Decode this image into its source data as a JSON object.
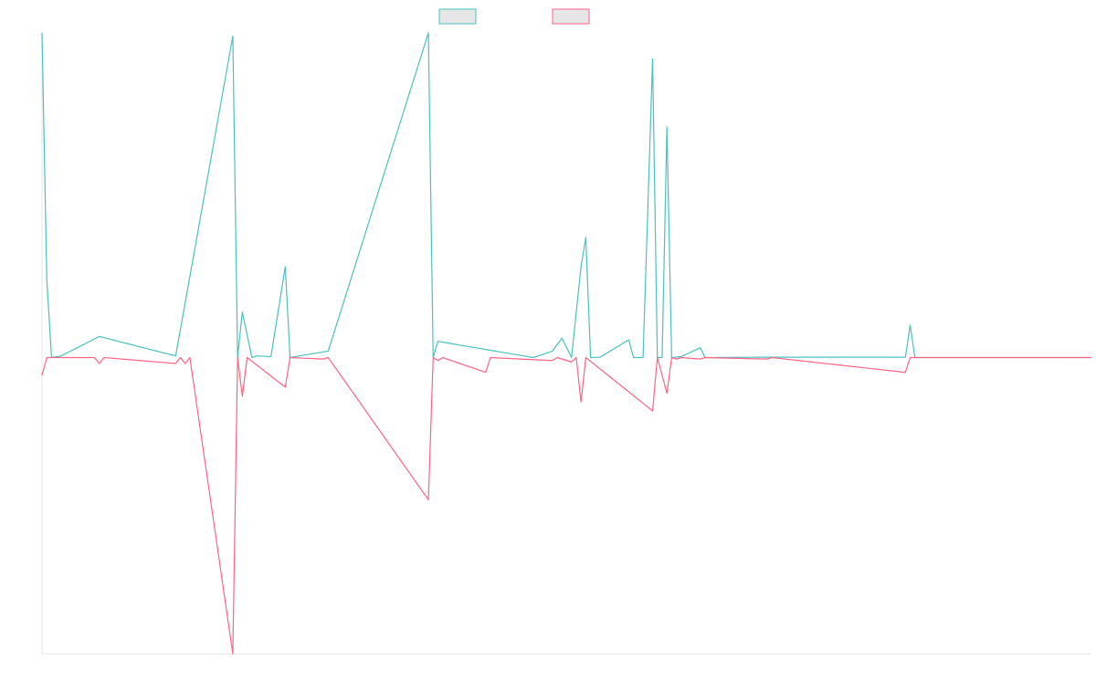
{
  "chart_data": {
    "type": "line",
    "title": "",
    "xlabel": "",
    "ylabel": "",
    "grid": false,
    "legend_position": "top-center",
    "x_count": 221,
    "ylim": [
      -1.0,
      1.0
    ],
    "series": [
      {
        "color": "#4bc0c0",
        "fill": "#e6e6e6",
        "points": [
          [
            0,
            1.0
          ],
          [
            1,
            0.24
          ],
          [
            2,
            0.0
          ],
          [
            4,
            0.005
          ],
          [
            12,
            0.065
          ],
          [
            28,
            0.005
          ],
          [
            29,
            0.085
          ],
          [
            40,
            0.99
          ],
          [
            41,
            0.0
          ],
          [
            42,
            0.14
          ],
          [
            44,
            0.0
          ],
          [
            45,
            0.005
          ],
          [
            48,
            0.003
          ],
          [
            51,
            0.28
          ],
          [
            52,
            0.0
          ],
          [
            60,
            0.02
          ],
          [
            81,
            1.0
          ],
          [
            82,
            0.0
          ],
          [
            83,
            0.05
          ],
          [
            103,
            0.0
          ],
          [
            107,
            0.02
          ],
          [
            109,
            0.06
          ],
          [
            111,
            0.0
          ],
          [
            113,
            0.28
          ],
          [
            114,
            0.37
          ],
          [
            115,
            0.0
          ],
          [
            117,
            0.001
          ],
          [
            123,
            0.055
          ],
          [
            124,
            0.0
          ],
          [
            126,
            0.0
          ],
          [
            128,
            0.92
          ],
          [
            129,
            0.0
          ],
          [
            130,
            0.0
          ],
          [
            131,
            0.71
          ],
          [
            132,
            0.0
          ],
          [
            134,
            0.003
          ],
          [
            138,
            0.03
          ],
          [
            139,
            0.0
          ],
          [
            150,
            0.001
          ],
          [
            181,
            0.001
          ],
          [
            182,
            0.1
          ],
          [
            183,
            0.0
          ],
          [
            220,
            0.0
          ]
        ]
      },
      {
        "color": "#ff6384",
        "fill": "#e6e6e6",
        "points": [
          [
            0,
            -0.06
          ],
          [
            1,
            0.0
          ],
          [
            11,
            0.0
          ],
          [
            12,
            -0.02
          ],
          [
            13,
            0.0
          ],
          [
            28,
            -0.02
          ],
          [
            29,
            0.0
          ],
          [
            30,
            -0.02
          ],
          [
            31,
            0.0
          ],
          [
            40,
            -1.0
          ],
          [
            41,
            0.0
          ],
          [
            42,
            -0.13
          ],
          [
            43,
            0.0
          ],
          [
            51,
            -0.1
          ],
          [
            52,
            0.0
          ],
          [
            59,
            -0.005
          ],
          [
            60,
            0.0
          ],
          [
            81,
            -0.48
          ],
          [
            82,
            0.0
          ],
          [
            83,
            -0.01
          ],
          [
            84,
            0.0
          ],
          [
            93,
            -0.05
          ],
          [
            94,
            0.0
          ],
          [
            107,
            -0.01
          ],
          [
            108,
            0.0
          ],
          [
            111,
            -0.015
          ],
          [
            112,
            0.0
          ],
          [
            113,
            -0.15
          ],
          [
            114,
            0.0
          ],
          [
            128,
            -0.18
          ],
          [
            129,
            0.0
          ],
          [
            131,
            -0.12
          ],
          [
            132,
            0.0
          ],
          [
            133,
            -0.005
          ],
          [
            134,
            0.0
          ],
          [
            138,
            -0.005
          ],
          [
            139,
            0.0
          ],
          [
            152,
            -0.005
          ],
          [
            153,
            0.0
          ],
          [
            181,
            -0.05
          ],
          [
            182,
            0.0
          ],
          [
            220,
            0.0
          ]
        ]
      }
    ]
  }
}
